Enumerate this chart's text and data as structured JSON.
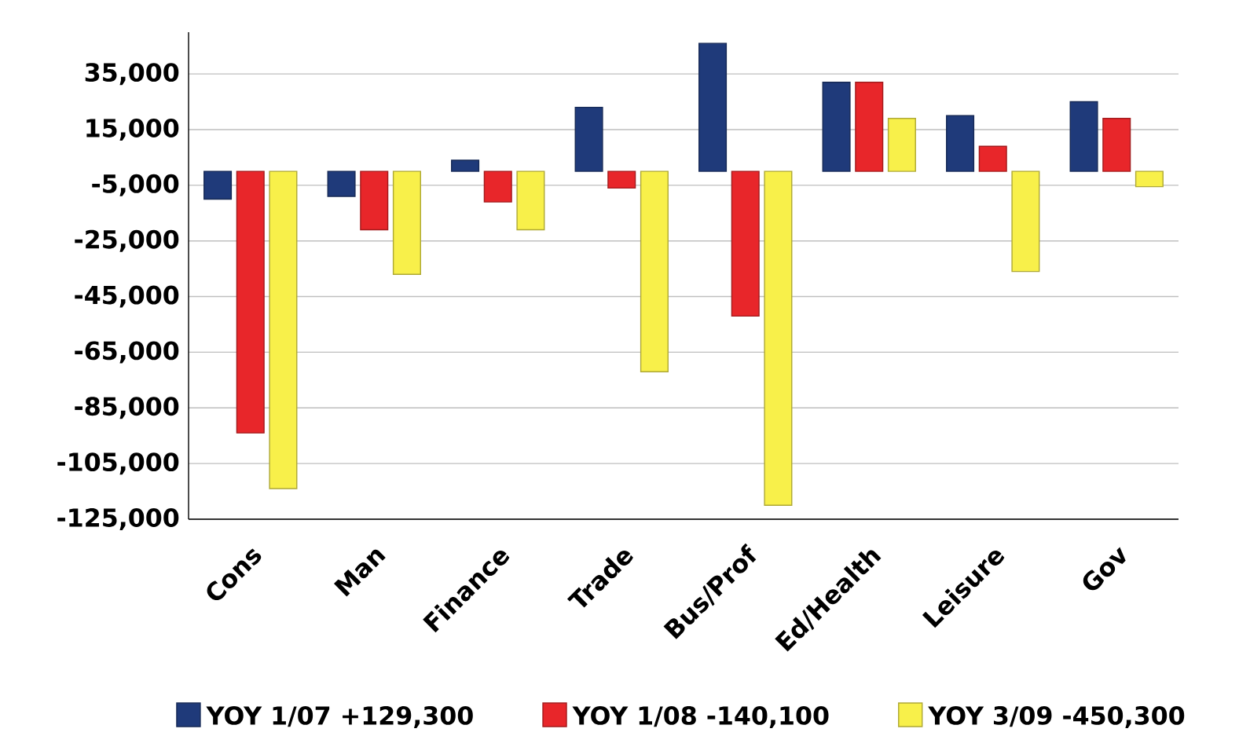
{
  "chart_data": {
    "type": "bar",
    "categories": [
      "Cons",
      "Man",
      "Finance",
      "Trade",
      "Bus/Prof",
      "Ed/Health",
      "Leisure",
      "Gov"
    ],
    "series": [
      {
        "name": "YOY 1/07 +129,300",
        "color": "#1f3a7a",
        "values": [
          -10000,
          -9000,
          4000,
          23000,
          46000,
          32000,
          20000,
          25000
        ]
      },
      {
        "name": "YOY 1/08   -140,100",
        "color": "#e8262a",
        "values": [
          -94000,
          -21000,
          -11000,
          -6000,
          -52000,
          32000,
          9000,
          19000
        ]
      },
      {
        "name": "YOY 3/09 -450,300",
        "color": "#f8f04a",
        "values": [
          -114000,
          -37000,
          -21000,
          -72000,
          -120000,
          19000,
          -36000,
          -5500
        ]
      }
    ],
    "ylim": [
      -125000,
      50000
    ],
    "yticks": [
      {
        "value": 35000,
        "label": "35,000"
      },
      {
        "value": 15000,
        "label": "15,000"
      },
      {
        "value": -5000,
        "label": "-5,000"
      },
      {
        "value": -25000,
        "label": "-25,000"
      },
      {
        "value": -45000,
        "label": "-45,000"
      },
      {
        "value": -65000,
        "label": "-65,000"
      },
      {
        "value": -85000,
        "label": "-85,000"
      },
      {
        "value": -105000,
        "label": "-105,000"
      },
      {
        "value": -125000,
        "label": "-125,000"
      }
    ],
    "grid": "y",
    "legend": "bottom"
  }
}
